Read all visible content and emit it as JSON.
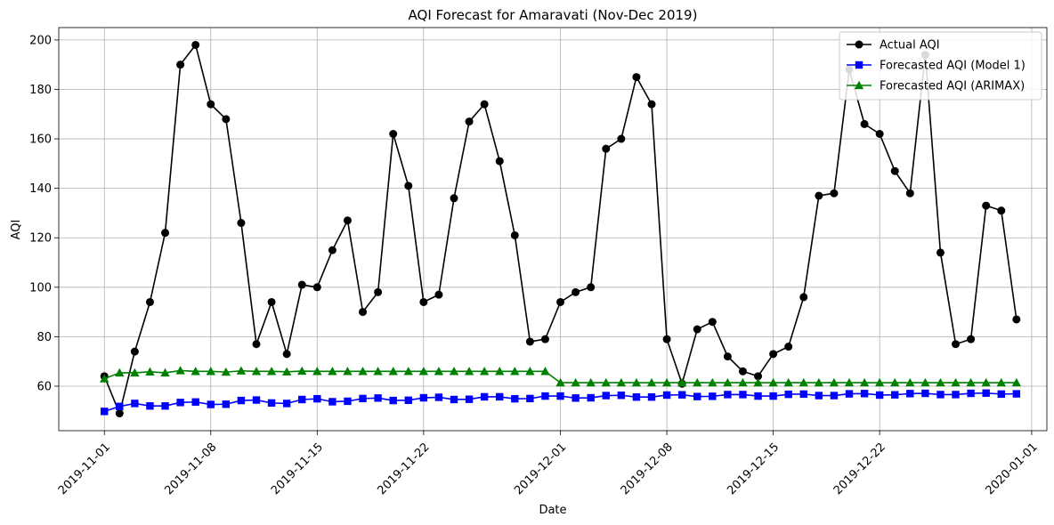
{
  "chart_data": {
    "type": "line",
    "title": "AQI Forecast for Amaravati (Nov-Dec 2019)",
    "xlabel": "Date",
    "ylabel": "AQI",
    "x_start": "2019-11-01",
    "xlim": [
      "2019-10-29",
      "2020-01-02"
    ],
    "ylim": [
      42,
      205
    ],
    "x_ticks": [
      "2019-11-01",
      "2019-11-08",
      "2019-11-15",
      "2019-11-22",
      "2019-12-01",
      "2019-12-08",
      "2019-12-15",
      "2019-12-22",
      "2020-01-01"
    ],
    "y_ticks": [
      60,
      80,
      100,
      120,
      140,
      160,
      180,
      200
    ],
    "grid": true,
    "legend_position": "top-right",
    "series": [
      {
        "name": "Actual AQI",
        "color": "#000000",
        "marker": "circle",
        "values": [
          64,
          49,
          74,
          94,
          122,
          190,
          198,
          174,
          168,
          126,
          77,
          94,
          73,
          101,
          100,
          115,
          127,
          90,
          98,
          162,
          141,
          94,
          97,
          136,
          167,
          174,
          151,
          121,
          78,
          79,
          94,
          98,
          100,
          156,
          160,
          185,
          174,
          79,
          61,
          83,
          86,
          72,
          66,
          64,
          73,
          76,
          96,
          137,
          138,
          188,
          166,
          162,
          147,
          138,
          194,
          114,
          77,
          79,
          133,
          131,
          87
        ]
      },
      {
        "name": "Forecasted AQI (Model 1)",
        "color": "#0000ff",
        "marker": "square",
        "values": [
          49.8,
          51.8,
          53,
          52,
          52,
          53.4,
          53.6,
          52.6,
          52.7,
          54.2,
          54.4,
          53.2,
          53,
          54.6,
          54.9,
          53.7,
          53.9,
          55,
          55.2,
          54.2,
          54.3,
          55.3,
          55.5,
          54.6,
          54.7,
          55.7,
          55.7,
          54.9,
          55,
          56,
          56,
          55.2,
          55.3,
          56.2,
          56.3,
          55.6,
          55.6,
          56.4,
          56.5,
          55.8,
          55.9,
          56.6,
          56.6,
          56,
          56,
          56.7,
          56.8,
          56.2,
          56.2,
          56.9,
          57,
          56.4,
          56.5,
          57,
          57.1,
          56.6,
          56.6,
          57.1,
          57.2,
          56.8,
          56.9
        ]
      },
      {
        "name": "Forecasted AQI (ARIMAX)",
        "color": "#008000",
        "marker": "triangle",
        "values": [
          63,
          65.4,
          65.4,
          65.8,
          65.4,
          66.3,
          66,
          66,
          65.7,
          66.2,
          66,
          66,
          65.8,
          66.1,
          66,
          66,
          66,
          66,
          66,
          66,
          66,
          66,
          66,
          66,
          66,
          66,
          66,
          66,
          66,
          66,
          61.4,
          61.4,
          61.4,
          61.4,
          61.4,
          61.4,
          61.4,
          61.4,
          61.4,
          61.4,
          61.4,
          61.4,
          61.4,
          61.4,
          61.4,
          61.4,
          61.4,
          61.4,
          61.4,
          61.4,
          61.4,
          61.4,
          61.4,
          61.4,
          61.4,
          61.4,
          61.4,
          61.4,
          61.4,
          61.4,
          61.4
        ]
      }
    ]
  }
}
